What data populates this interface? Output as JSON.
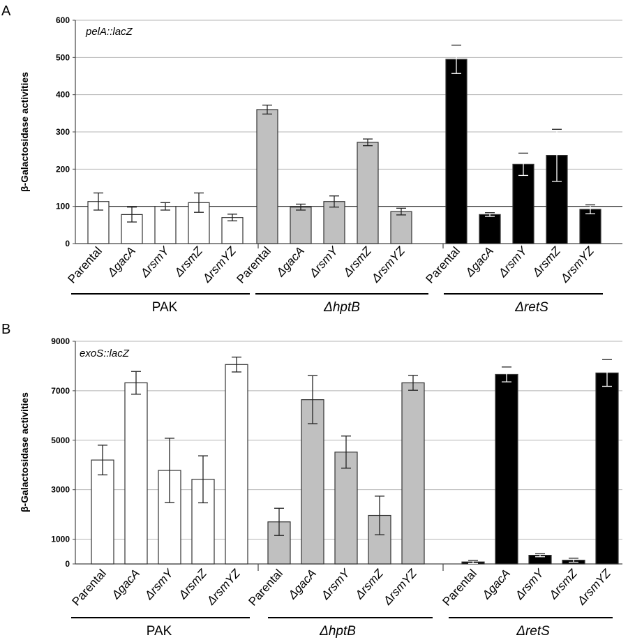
{
  "chart_data": [
    {
      "panel_label": "A",
      "type": "bar",
      "annotation": "pelA::lacZ",
      "ylabel": "β-Galactosidase activities",
      "ylim": [
        0,
        600
      ],
      "yticks": [
        0,
        100,
        200,
        300,
        400,
        500,
        600
      ],
      "grid": "horizontal",
      "highlight_line": 100,
      "categories": [
        "Parental",
        "ΔgacA",
        "ΔrsmY",
        "ΔrsmZ",
        "ΔrsmYZ"
      ],
      "groups": [
        {
          "label": "PAK",
          "color": "#ffffff",
          "values": [
            113,
            78,
            100,
            110,
            70
          ],
          "errors": [
            23,
            20,
            10,
            26,
            9
          ]
        },
        {
          "label": "ΔhptB",
          "color": "#c0c0c0",
          "values": [
            360,
            98,
            113,
            272,
            86
          ],
          "errors": [
            12,
            8,
            15,
            9,
            9
          ]
        },
        {
          "label": "ΔretS",
          "color": "#000000",
          "values": [
            495,
            78,
            213,
            237,
            92
          ],
          "errors": [
            38,
            5,
            30,
            70,
            12
          ]
        }
      ]
    },
    {
      "panel_label": "B",
      "type": "bar",
      "annotation": "exoS::lacZ",
      "ylabel": "β-Galactosidase activities",
      "ylim": [
        0,
        9000
      ],
      "yticks": [
        0,
        1000,
        3000,
        5000,
        7000,
        9000
      ],
      "grid": "horizontal",
      "categories": [
        "Parental",
        "ΔgacA",
        "ΔrsmY",
        "ΔrsmZ",
        "ΔrsmYZ"
      ],
      "groups": [
        {
          "label": "PAK",
          "color": "#ffffff",
          "values": [
            4200,
            7320,
            3780,
            3420,
            8060
          ],
          "errors": [
            600,
            460,
            1300,
            950,
            300
          ]
        },
        {
          "label": "ΔhptB",
          "color": "#c0c0c0",
          "values": [
            1700,
            6640,
            4520,
            1960,
            7320
          ],
          "errors": [
            550,
            970,
            650,
            780,
            300
          ]
        },
        {
          "label": "ΔretS",
          "color": "#000000",
          "values": [
            80,
            7660,
            350,
            150,
            7720
          ],
          "errors": [
            60,
            300,
            60,
            80,
            540
          ]
        }
      ]
    }
  ]
}
